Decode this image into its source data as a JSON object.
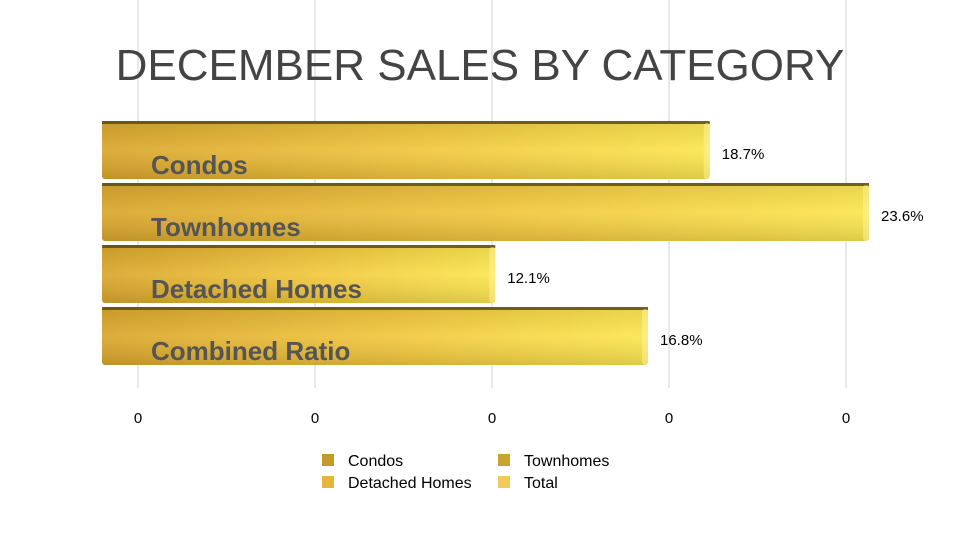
{
  "chart_data": {
    "type": "bar",
    "orientation": "horizontal",
    "title": "DECEMBER SALES BY CATEGORY",
    "categories": [
      "Condos",
      "Townhomes",
      "Detached Homes",
      "Combined Ratio"
    ],
    "values": [
      18.7,
      23.6,
      12.1,
      16.8
    ],
    "value_labels": [
      "18.7%",
      "23.6%",
      "12.1%",
      "16.8%"
    ],
    "unit": "%",
    "xlim": [
      0,
      25
    ],
    "x_tick_labels": [
      "0",
      "0",
      "0",
      "0",
      "0"
    ],
    "grid": "vertical",
    "legend": {
      "placement": "bottom",
      "entries": [
        {
          "label": "Condos",
          "color": "#c49a2c"
        },
        {
          "label": "Townhomes",
          "color": "#c9a232"
        },
        {
          "label": "Detached Homes",
          "color": "#e5b53c"
        },
        {
          "label": "Total",
          "color": "#f3c95a"
        }
      ]
    },
    "colors": {
      "bar_dark": "#e0ad2c",
      "bar_light": "#fbe24e",
      "bar_top": "#5a4a18",
      "gridline": "#d0d0d0"
    }
  }
}
